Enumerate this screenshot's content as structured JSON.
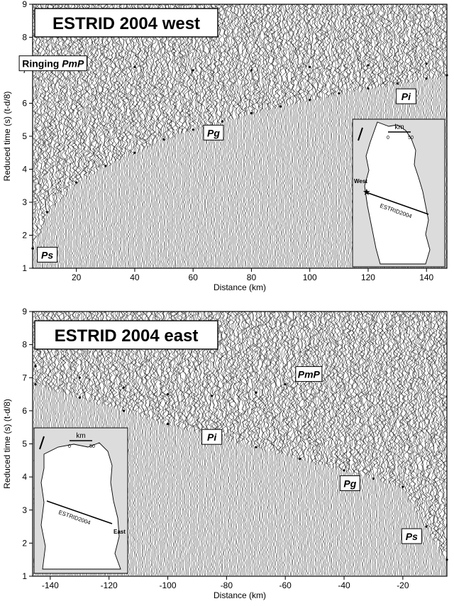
{
  "chart_data": [
    {
      "type": "scatter",
      "panel": "west",
      "title": "ESTRID 2004 west",
      "xlabel": "Distance (km)",
      "ylabel": "Reduced time (s) (t-d/8)",
      "xlim": [
        5,
        147
      ],
      "ylim": [
        1,
        9
      ],
      "xticks": [
        20,
        40,
        60,
        80,
        100,
        120,
        140
      ],
      "yticks": [
        1,
        2,
        3,
        4,
        5,
        6,
        7,
        8,
        9
      ],
      "phase_labels": [
        {
          "text": "Ringing",
          "italic_text": "PmP",
          "x": 12,
          "y": 7.2
        },
        {
          "text": "",
          "italic_text": "Pg",
          "x": 67,
          "y": 5.1
        },
        {
          "text": "",
          "italic_text": "Pi",
          "x": 133,
          "y": 6.2
        },
        {
          "text": "",
          "italic_text": "Ps",
          "x": 10,
          "y": 1.4
        }
      ],
      "picks": [
        {
          "name": "Pg",
          "x": [
            5,
            10,
            20,
            30,
            40,
            50,
            60,
            70,
            80,
            90,
            100,
            110,
            120,
            130,
            140,
            147
          ],
          "y": [
            1.6,
            2.7,
            3.6,
            4.1,
            4.5,
            4.9,
            5.2,
            5.45,
            5.7,
            5.9,
            6.1,
            6.3,
            6.45,
            6.6,
            6.75,
            6.85
          ]
        },
        {
          "name": "PmP",
          "x": [
            20,
            40,
            60,
            80,
            100,
            120,
            140
          ],
          "y": [
            7.3,
            7.1,
            7.0,
            7.0,
            7.1,
            7.15,
            7.2
          ]
        }
      ],
      "inset_map": {
        "scale_label": "km",
        "scale_ticks": [
          "0",
          "50"
        ],
        "profile_label": "ESTRID2004",
        "shot_label": "West"
      }
    },
    {
      "type": "scatter",
      "panel": "east",
      "title": "ESTRID 2004 east",
      "xlabel": "Distance (km)",
      "ylabel": "Reduced time (s) (t-d/8)",
      "xlim": [
        -146,
        -5
      ],
      "ylim": [
        1,
        9
      ],
      "xticks": [
        -140,
        -120,
        -100,
        -80,
        -60,
        -40,
        -20
      ],
      "yticks": [
        1,
        2,
        3,
        4,
        5,
        6,
        7,
        8,
        9
      ],
      "phase_labels": [
        {
          "text": "",
          "italic_text": "PmP",
          "x": -52,
          "y": 7.1
        },
        {
          "text": "",
          "italic_text": "Pi",
          "x": -85,
          "y": 5.2
        },
        {
          "text": "",
          "italic_text": "Pg",
          "x": -38,
          "y": 3.8
        },
        {
          "text": "",
          "italic_text": "Ps",
          "x": -17,
          "y": 2.2
        }
      ],
      "picks": [
        {
          "name": "Pg",
          "x": [
            -145,
            -130,
            -115,
            -100,
            -85,
            -70,
            -55,
            -40,
            -30,
            -20,
            -12,
            -5
          ],
          "y": [
            6.8,
            6.4,
            6.0,
            5.6,
            5.25,
            4.9,
            4.55,
            4.2,
            3.95,
            3.7,
            2.5,
            1.5
          ]
        },
        {
          "name": "PmP",
          "x": [
            -145,
            -130,
            -115,
            -100,
            -85,
            -70,
            -60,
            -50
          ],
          "y": [
            7.35,
            7.0,
            6.7,
            6.5,
            6.45,
            6.55,
            6.8,
            7.2
          ]
        }
      ],
      "inset_map": {
        "scale_label": "km",
        "scale_ticks": [
          "0",
          "50"
        ],
        "profile_label": "ESTRID2004",
        "shot_label": "East"
      }
    }
  ]
}
